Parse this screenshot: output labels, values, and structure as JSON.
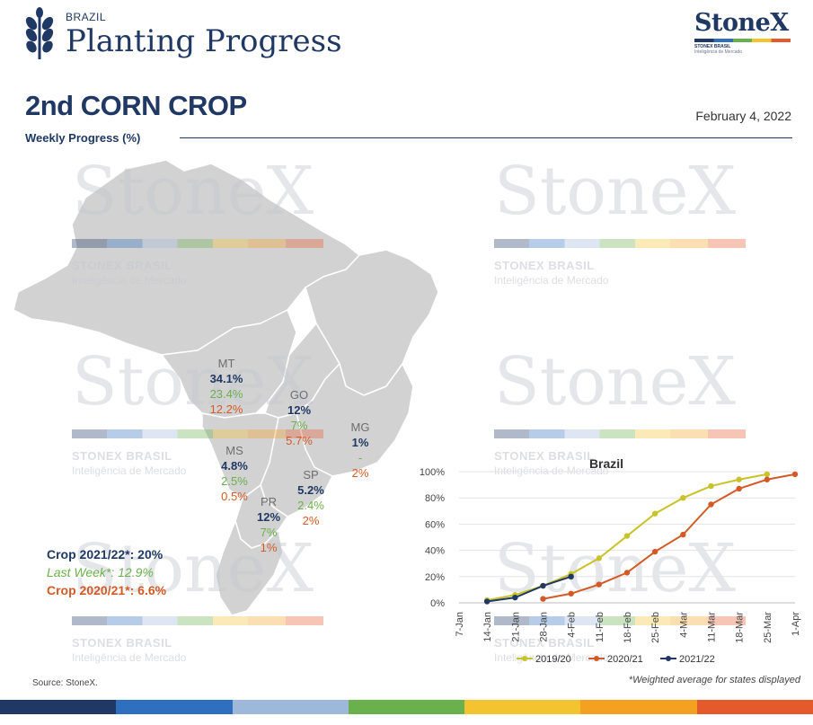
{
  "header": {
    "region_label": "BRAZIL",
    "title": "Planting Progress",
    "brand": "StoneX",
    "brand_sub1": "STONEX BRASIL",
    "brand_sub2": "Inteligência de Mercado"
  },
  "crop_title": "2nd CORN CROP",
  "report_date": "February 4, 2022",
  "section_label": "Weekly Progress (%)",
  "watermark": {
    "word": "StoneX",
    "sub1": "STONEX BRASIL",
    "sub2": "Inteligência de Mercado"
  },
  "states": [
    {
      "name": "MT",
      "current": "34.1%",
      "last_week": "23.4%",
      "last_year": "12.2%"
    },
    {
      "name": "GO",
      "current": "12%",
      "last_week": "7%",
      "last_year": "5.7%"
    },
    {
      "name": "MG",
      "current": "1%",
      "last_week": "-",
      "last_year": "2%"
    },
    {
      "name": "MS",
      "current": "4.8%",
      "last_week": "2.5%",
      "last_year": "0.5%"
    },
    {
      "name": "SP",
      "current": "5.2%",
      "last_week": "2.4%",
      "last_year": "2%"
    },
    {
      "name": "PR",
      "current": "12%",
      "last_week": "7%",
      "last_year": "1%"
    }
  ],
  "summary": {
    "current": "Crop 2021/22*: 20%",
    "last_week": "Last Week*: 12.9%",
    "last_year": "Crop 2020/21*: 6.6%"
  },
  "source": "Source: StoneX.",
  "footnote": "*Weighted average for states displayed",
  "colors": {
    "navy": "#1f3864",
    "green": "#6ab04c",
    "orange": "#d35a26",
    "series_2019_20": "#c9c32a",
    "series_2020_21": "#d35a26",
    "series_2021_22": "#1f3864"
  },
  "chart_data": {
    "type": "line",
    "title": "Brazil",
    "x": [
      "7-Jan",
      "14-Jan",
      "21-Jan",
      "28-Jan",
      "4-Feb",
      "11-Feb",
      "18-Feb",
      "25-Feb",
      "4-Mar",
      "11-Mar",
      "18-Mar",
      "25-Mar",
      "1-Apr"
    ],
    "yticks": [
      "0%",
      "20%",
      "40%",
      "60%",
      "80%",
      "100%"
    ],
    "ylim": [
      0,
      100
    ],
    "grid": true,
    "legend": "bottom",
    "series": [
      {
        "name": "2019/20",
        "color": "#c9c32a",
        "values": [
          null,
          2,
          6,
          13,
          22,
          34,
          51,
          68,
          80,
          89,
          94,
          98,
          null
        ]
      },
      {
        "name": "2020/21",
        "color": "#d35a26",
        "values": [
          null,
          null,
          null,
          3,
          7,
          14,
          23,
          39,
          52,
          75,
          87,
          94,
          98
        ]
      },
      {
        "name": "2021/22",
        "color": "#1f3864",
        "values": [
          null,
          1,
          4,
          13,
          20,
          null,
          null,
          null,
          null,
          null,
          null,
          null,
          null
        ]
      }
    ]
  }
}
